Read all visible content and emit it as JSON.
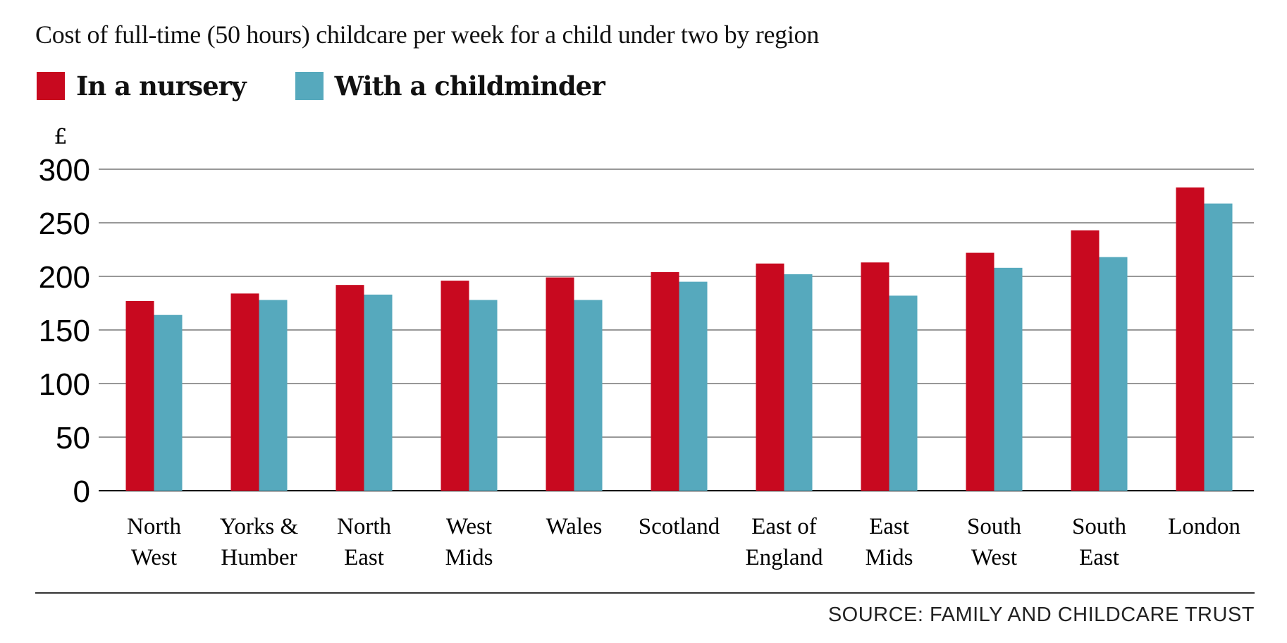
{
  "chart_data": {
    "type": "bar",
    "title": "Cost of full-time (50 hours) childcare per week for a child under two by region",
    "ylabel": "£",
    "xlabel": "",
    "ylim": [
      0,
      300
    ],
    "yticks": [
      0,
      50,
      100,
      150,
      200,
      250,
      300
    ],
    "grid": true,
    "legend": "top-left",
    "categories": [
      [
        "North",
        "West"
      ],
      [
        "Yorks &",
        "Humber"
      ],
      [
        "North",
        "East"
      ],
      [
        "West",
        "Mids"
      ],
      [
        "Wales"
      ],
      [
        "Scotland"
      ],
      [
        "East of",
        "England"
      ],
      [
        "East",
        "Mids"
      ],
      [
        "South",
        "West"
      ],
      [
        "South",
        "East"
      ],
      [
        "London"
      ]
    ],
    "series": [
      {
        "name": "In a nursery",
        "color": "#c8091f",
        "values": [
          177,
          184,
          192,
          196,
          199,
          204,
          212,
          213,
          222,
          243,
          283
        ]
      },
      {
        "name": "With a childminder",
        "color": "#56a9bd",
        "values": [
          164,
          178,
          183,
          178,
          178,
          195,
          202,
          182,
          208,
          218,
          268
        ]
      }
    ],
    "source": "SOURCE: FAMILY AND CHILDCARE TRUST"
  }
}
